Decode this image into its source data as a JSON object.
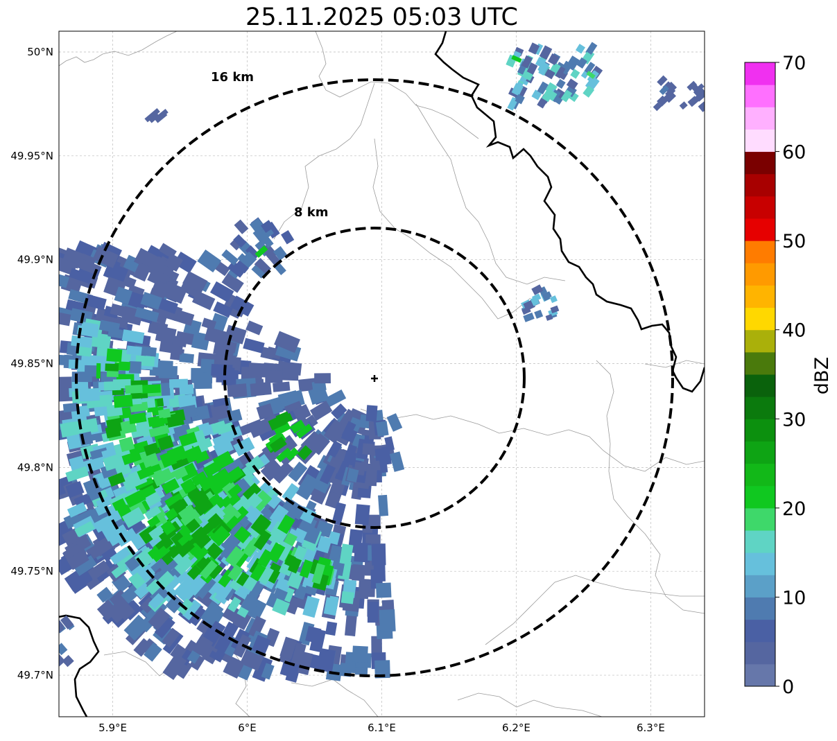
{
  "title": "25.11.2025 05:03 UTC",
  "map": {
    "lon_range": [
      5.86,
      6.34
    ],
    "lat_range": [
      49.68,
      50.01
    ],
    "lon_ticks": [
      {
        "value": 5.9,
        "label": "5.9°E"
      },
      {
        "value": 6.0,
        "label": "6°E"
      },
      {
        "value": 6.1,
        "label": "6.1°E"
      },
      {
        "value": 6.2,
        "label": "6.2°E"
      },
      {
        "value": 6.3,
        "label": "6.3°E"
      }
    ],
    "lat_ticks": [
      {
        "value": 50.0,
        "label": "50°N"
      },
      {
        "value": 49.95,
        "label": "49.95°N"
      },
      {
        "value": 49.9,
        "label": "49.9°N"
      },
      {
        "value": 49.85,
        "label": "49.85°N"
      },
      {
        "value": 49.8,
        "label": "49.8°N"
      },
      {
        "value": 49.75,
        "label": "49.75°N"
      },
      {
        "value": 49.7,
        "label": "49.7°N"
      }
    ],
    "radar_site": {
      "lon": 6.094,
      "lat": 49.843
    },
    "range_rings": [
      {
        "radius_km": 8,
        "label": "8 km"
      },
      {
        "radius_km": 16,
        "label": "16 km"
      }
    ],
    "grid": true
  },
  "colorbar": {
    "label": "dBZ",
    "min": 0,
    "max": 70,
    "tick_labels": [
      "0",
      "10",
      "20",
      "30",
      "40",
      "50",
      "60",
      "70"
    ],
    "colors": [
      "#6677aa",
      "#5566a0",
      "#4a60a4",
      "#4f7bb0",
      "#5ba0c8",
      "#66c0dc",
      "#5fd4c4",
      "#3ed86a",
      "#10c820",
      "#12b818",
      "#0ea414",
      "#0c900e",
      "#0b7a0d",
      "#0a620c",
      "#4a7a0c",
      "#aab00a",
      "#ffd800",
      "#ffb400",
      "#ff9a00",
      "#ff7c00",
      "#e60000",
      "#c80000",
      "#a80000",
      "#7a0000",
      "#ffdcff",
      "#ffb0ff",
      "#ff70ff",
      "#f030f0"
    ]
  },
  "echo_colors": {
    "weak": "#5566a0",
    "weak2": "#4a60a4",
    "light": "#4f7bb0",
    "sky": "#66c0dc",
    "cyan": "#5fd4c4",
    "lgreen": "#3ed86a",
    "green": "#10c820",
    "dgreen": "#0ea414"
  }
}
